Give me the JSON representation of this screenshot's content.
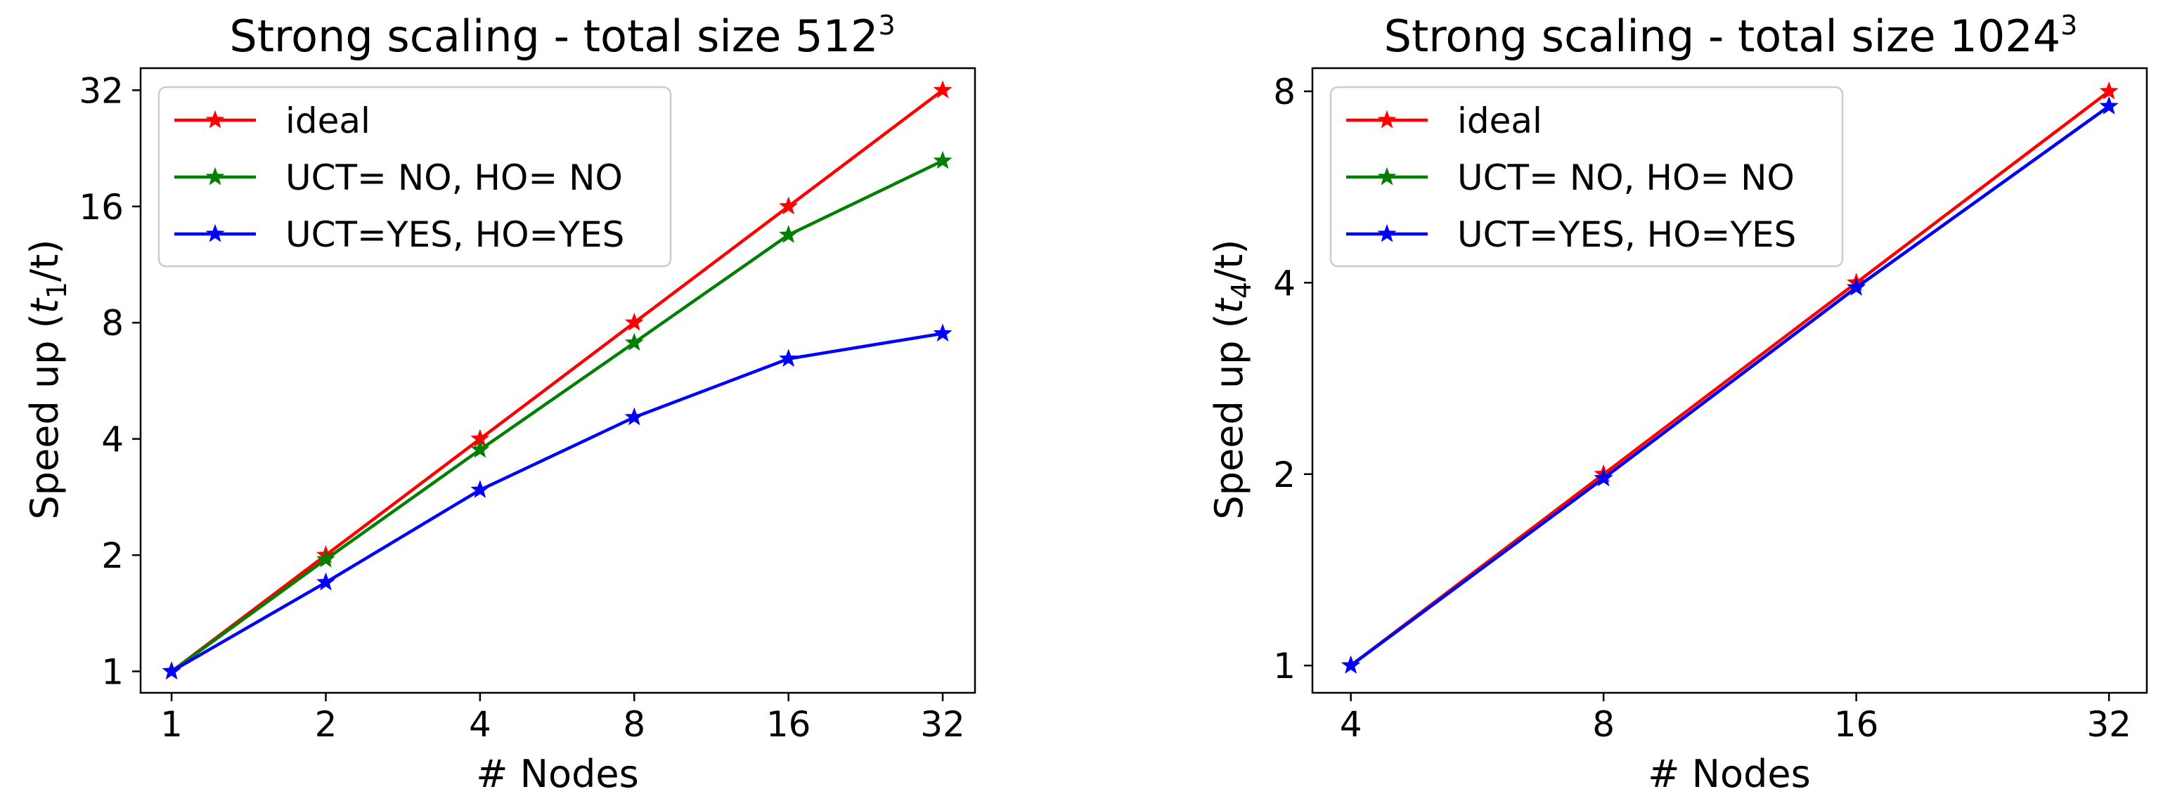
{
  "chart_data": [
    {
      "type": "line",
      "title": "Strong scaling - total size 512",
      "title_exponent": "3",
      "xlabel": "# Nodes",
      "ylabel": "Speed up (",
      "ylabel_math": "t",
      "ylabel_sub": "1",
      "ylabel_end": "/t)",
      "xscale": "log2",
      "yscale": "log2",
      "x": [
        1,
        2,
        4,
        8,
        16,
        32
      ],
      "xticks": [
        "1",
        "2",
        "4",
        "8",
        "16",
        "32"
      ],
      "yticks": [
        "1",
        "2",
        "4",
        "8",
        "16",
        "32"
      ],
      "xlim": [
        0.87,
        37
      ],
      "ylim": [
        0.88,
        36.5
      ],
      "legend_position": "top-left",
      "series": [
        {
          "name": "ideal",
          "color": "#ff0000",
          "marker": "star",
          "values": [
            1,
            2,
            4,
            8,
            16,
            32
          ]
        },
        {
          "name": "UCT= NO, HO= NO",
          "color": "#008000",
          "marker": "star",
          "values": [
            1,
            1.95,
            3.75,
            7.1,
            13.5,
            21.0
          ]
        },
        {
          "name": "UCT=YES, HO=YES",
          "color": "#0000ff",
          "marker": "star",
          "values": [
            1,
            1.7,
            2.95,
            4.55,
            6.45,
            7.5
          ]
        }
      ]
    },
    {
      "type": "line",
      "title": "Strong scaling - total size 1024",
      "title_exponent": "3",
      "xlabel": "# Nodes",
      "ylabel": "Speed up (",
      "ylabel_math": "t",
      "ylabel_sub": "4",
      "ylabel_end": "/t)",
      "xscale": "log2",
      "yscale": "log2",
      "x": [
        4,
        8,
        16,
        32
      ],
      "xticks": [
        "4",
        "8",
        "16",
        "32"
      ],
      "yticks": [
        "1",
        "2",
        "4",
        "8"
      ],
      "xlim": [
        3.6,
        35.5
      ],
      "ylim": [
        0.906,
        8.7
      ],
      "legend_position": "top-left",
      "series": [
        {
          "name": "ideal",
          "color": "#ff0000",
          "marker": "star",
          "values": [
            1,
            2,
            4,
            8
          ]
        },
        {
          "name": "UCT= NO, HO= NO",
          "color": "#008000",
          "marker": "star",
          "values": [
            1,
            1.97,
            3.93,
            7.58
          ]
        },
        {
          "name": "UCT=YES, HO=YES",
          "color": "#0000ff",
          "marker": "star",
          "values": [
            1,
            1.97,
            3.93,
            7.58
          ]
        }
      ]
    }
  ]
}
